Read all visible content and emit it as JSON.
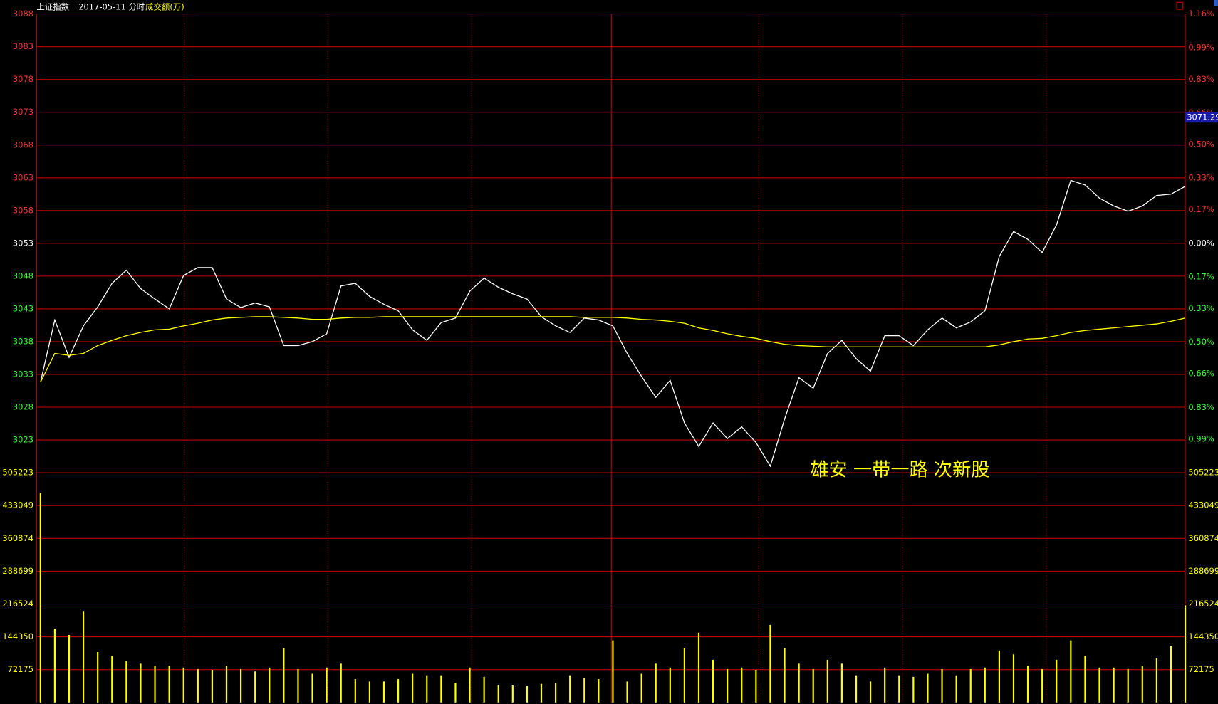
{
  "chart_data": {
    "type": "line",
    "title": "上证指数",
    "subtitle": "2017-05-11 分时",
    "volume_label": "成交额(万)",
    "annotation": "雄安 一带一路 次新股",
    "cursor_label": "3071.29",
    "ylim": [
      3018,
      3088
    ],
    "yticks": [
      3088,
      3083,
      3078,
      3073,
      3068,
      3063,
      3058,
      3053,
      3048,
      3043,
      3038,
      3033,
      3028,
      3023
    ],
    "y2lim": [
      -1.16,
      1.16
    ],
    "y2ticks": [
      {
        "value": 1.16,
        "label": "1.16%"
      },
      {
        "value": 0.99,
        "label": "0.99%"
      },
      {
        "value": 0.83,
        "label": "0.83%"
      },
      {
        "value": 0.66,
        "label": "0.66%"
      },
      {
        "value": 0.5,
        "label": "0.50%"
      },
      {
        "value": 0.33,
        "label": "0.33%"
      },
      {
        "value": 0.17,
        "label": "0.17%"
      },
      {
        "value": 0,
        "label": "0.00%"
      },
      {
        "value": -0.17,
        "label": "0.17%"
      },
      {
        "value": -0.33,
        "label": "0.33%"
      },
      {
        "value": -0.5,
        "label": "0.50%"
      },
      {
        "value": -0.66,
        "label": "0.66%"
      },
      {
        "value": -0.83,
        "label": "0.83%"
      },
      {
        "value": -0.99,
        "label": "0.99%"
      }
    ],
    "grid": true,
    "series": [
      {
        "color": "#ffffff",
        "values": [
          3031.8,
          3041.3,
          3035.6,
          3040.4,
          3043.3,
          3046.9,
          3048.9,
          3046.1,
          3044.5,
          3043.0,
          3048.1,
          3049.3,
          3049.3,
          3044.5,
          3043.2,
          3043.9,
          3043.3,
          3037.4,
          3037.4,
          3038.0,
          3039.2,
          3046.5,
          3046.9,
          3044.9,
          3043.7,
          3042.7,
          3039.8,
          3038.2,
          3040.9,
          3041.6,
          3045.7,
          3047.7,
          3046.3,
          3045.3,
          3044.5,
          3041.8,
          3040.4,
          3039.4,
          3041.6,
          3041.3,
          3040.4,
          3036.2,
          3032.7,
          3029.5,
          3032.1,
          3025.6,
          3022.0,
          3025.6,
          3023.2,
          3025.0,
          3022.6,
          3019.0,
          3026.2,
          3032.5,
          3030.9,
          3036.2,
          3038.2,
          3035.4,
          3033.5,
          3038.9,
          3038.9,
          3037.4,
          3039.8,
          3041.6,
          3040.1,
          3041.0,
          3042.7,
          3051.0,
          3054.8,
          3053.6,
          3051.6,
          3055.8,
          3062.6,
          3061.9,
          3059.9,
          3058.7,
          3057.9,
          3058.7,
          3060.3,
          3060.5,
          3061.7
        ]
      },
      {
        "color": "#ffff00",
        "values": [
          3031.8,
          3036.2,
          3035.9,
          3036.2,
          3037.4,
          3038.2,
          3038.9,
          3039.4,
          3039.8,
          3039.9,
          3040.4,
          3040.8,
          3041.3,
          3041.6,
          3041.7,
          3041.8,
          3041.8,
          3041.7,
          3041.6,
          3041.4,
          3041.4,
          3041.6,
          3041.7,
          3041.7,
          3041.8,
          3041.8,
          3041.8,
          3041.8,
          3041.8,
          3041.8,
          3041.8,
          3041.8,
          3041.8,
          3041.8,
          3041.8,
          3041.8,
          3041.8,
          3041.8,
          3041.7,
          3041.7,
          3041.7,
          3041.6,
          3041.4,
          3041.3,
          3041.1,
          3040.8,
          3040.1,
          3039.7,
          3039.2,
          3038.8,
          3038.5,
          3038.0,
          3037.6,
          3037.4,
          3037.3,
          3037.2,
          3037.2,
          3037.2,
          3037.2,
          3037.2,
          3037.2,
          3037.2,
          3037.2,
          3037.2,
          3037.2,
          3037.2,
          3037.2,
          3037.5,
          3038.0,
          3038.4,
          3038.5,
          3038.9,
          3039.4,
          3039.7,
          3039.9,
          3040.1,
          3040.3,
          3040.5,
          3040.7,
          3041.1,
          3041.6
        ]
      }
    ],
    "volume": {
      "type": "bar",
      "color": "#ffff00",
      "ylim": [
        0,
        505223
      ],
      "yticks": [
        505223,
        433049,
        360874,
        288699,
        216524,
        144350,
        72175
      ],
      "values": [
        460600,
        162100,
        148400,
        199600,
        110900,
        102400,
        90400,
        85300,
        80200,
        80200,
        76800,
        73400,
        71700,
        80200,
        73400,
        68200,
        76800,
        119400,
        73400,
        63100,
        76800,
        85300,
        51200,
        46100,
        46100,
        51200,
        63100,
        59700,
        59700,
        42700,
        76800,
        56300,
        37500,
        37500,
        35800,
        40900,
        42700,
        59700,
        54600,
        51200,
        136500,
        46100,
        63100,
        85300,
        76800,
        119400,
        153500,
        93800,
        73400,
        76800,
        71700,
        170600,
        119400,
        85300,
        73400,
        93800,
        85300,
        59700,
        46100,
        76800,
        59700,
        56300,
        63100,
        73400,
        59700,
        73400,
        76800,
        114300,
        105800,
        80200,
        73400,
        93800,
        136500,
        102400,
        76800,
        76800,
        73400,
        80200,
        97300,
        124500,
        213300
      ]
    }
  }
}
